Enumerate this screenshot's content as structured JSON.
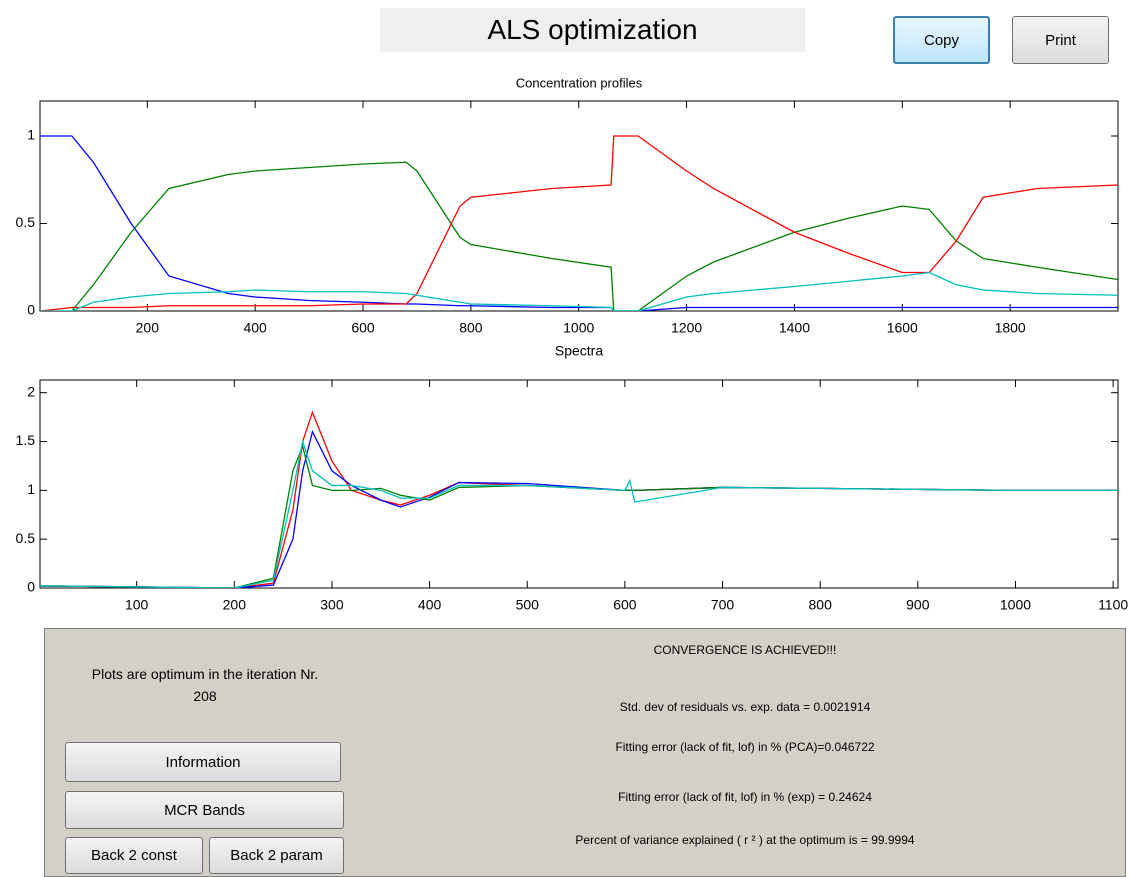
{
  "title": "ALS optimization",
  "buttons": {
    "copy": "Copy",
    "print": "Print"
  },
  "chart_data": [
    {
      "type": "line",
      "title": "Concentration profiles",
      "xlabel": "Spectra",
      "x": [
        1,
        60,
        100,
        170,
        240,
        350,
        400,
        500,
        600,
        680,
        700,
        780,
        800,
        950,
        1060,
        1065,
        1110,
        1200,
        1250,
        1400,
        1500,
        1600,
        1650,
        1700,
        1750,
        1850,
        2000
      ],
      "series": [
        {
          "color": "#0000ff",
          "values": [
            1,
            1,
            0.85,
            0.5,
            0.2,
            0.1,
            0.08,
            0.06,
            0.05,
            0.04,
            0.04,
            0.03,
            0.03,
            0.02,
            0.02,
            0,
            0,
            0.02,
            0.02,
            0.02,
            0.02,
            0.02,
            0.02,
            0.02,
            0.02,
            0.02,
            0.02
          ]
        },
        {
          "color": "#008000",
          "values": [
            0,
            0,
            0.15,
            0.45,
            0.7,
            0.78,
            0.8,
            0.82,
            0.84,
            0.85,
            0.8,
            0.42,
            0.38,
            0.3,
            0.25,
            0,
            0,
            0.2,
            0.28,
            0.45,
            0.53,
            0.6,
            0.58,
            0.4,
            0.3,
            0.25,
            0.18
          ]
        },
        {
          "color": "#ff0000",
          "values": [
            0,
            0.02,
            0.02,
            0.02,
            0.03,
            0.03,
            0.03,
            0.03,
            0.04,
            0.04,
            0.1,
            0.6,
            0.65,
            0.7,
            0.72,
            1,
            1,
            0.8,
            0.7,
            0.45,
            0.33,
            0.22,
            0.22,
            0.4,
            0.65,
            0.7,
            0.72
          ]
        },
        {
          "color": "#00bfbf",
          "values": [
            0,
            0,
            0.05,
            0.08,
            0.1,
            0.11,
            0.12,
            0.11,
            0.11,
            0.1,
            0.09,
            0.05,
            0.04,
            0.03,
            0.02,
            0,
            0,
            0.08,
            0.1,
            0.14,
            0.17,
            0.2,
            0.22,
            0.15,
            0.12,
            0.1,
            0.09
          ]
        }
      ],
      "xlim": [
        1,
        2000
      ],
      "xticks": [
        200,
        400,
        600,
        800,
        1000,
        1200,
        1400,
        1600,
        1800
      ],
      "ylim": [
        0,
        1.2
      ],
      "yticks": [
        0,
        0.5,
        1
      ]
    },
    {
      "type": "line",
      "x": [
        1,
        20,
        200,
        240,
        260,
        270,
        280,
        300,
        320,
        350,
        370,
        400,
        430,
        500,
        600,
        605,
        610,
        700,
        800,
        1000,
        1105
      ],
      "series": [
        {
          "color": "#ff0000",
          "values": [
            0.02,
            0.02,
            0,
            0.05,
            0.8,
            1.5,
            1.8,
            1.3,
            1.0,
            0.9,
            0.85,
            0.95,
            1.08,
            1.05,
            1.0,
            1.0,
            1.0,
            1.03,
            1.02,
            1.0,
            1.0
          ]
        },
        {
          "color": "#0000ff",
          "values": [
            0.02,
            0.02,
            0,
            0.03,
            0.5,
            1.2,
            1.6,
            1.2,
            1.05,
            0.9,
            0.83,
            0.93,
            1.08,
            1.07,
            1.0,
            1.0,
            1.0,
            1.03,
            1.02,
            1.0,
            1.0
          ]
        },
        {
          "color": "#008000",
          "values": [
            0.02,
            0.02,
            0,
            0.1,
            1.2,
            1.45,
            1.05,
            1.0,
            1.0,
            1.02,
            0.95,
            0.9,
            1.03,
            1.05,
            1.0,
            1.0,
            1.0,
            1.03,
            1.02,
            1.0,
            1.0
          ]
        },
        {
          "color": "#00bfbf",
          "values": [
            0.02,
            0.02,
            0,
            0.08,
            1.0,
            1.5,
            1.2,
            1.05,
            1.05,
            1.0,
            0.92,
            0.92,
            1.05,
            1.05,
            1.0,
            1.1,
            0.88,
            1.03,
            1.02,
            1.0,
            1.0
          ]
        }
      ],
      "xlim": [
        1,
        1105
      ],
      "xticks": [
        100,
        200,
        300,
        400,
        500,
        600,
        700,
        800,
        900,
        1000,
        1100
      ],
      "ylim": [
        0,
        2.13
      ],
      "yticks": [
        0,
        0.5,
        1,
        1.5,
        2
      ]
    }
  ],
  "panel": {
    "iteration_label": "Plots are optimum in the iteration Nr.",
    "iteration": "208",
    "buttons": [
      "Information",
      "MCR Bands",
      "Back 2 const",
      "Back 2 param"
    ],
    "messages": [
      "CONVERGENCE IS ACHIEVED!!!",
      "Std. dev of residuals vs. exp. data = 0.0021914",
      "Fitting error (lack of fit, lof) in % (PCA)=0.046722",
      "Fitting error (lack of fit, lof) in % (exp) = 0.24624",
      "Percent of variance explained ( r ² ) at the optimum is = 99.9994"
    ]
  }
}
